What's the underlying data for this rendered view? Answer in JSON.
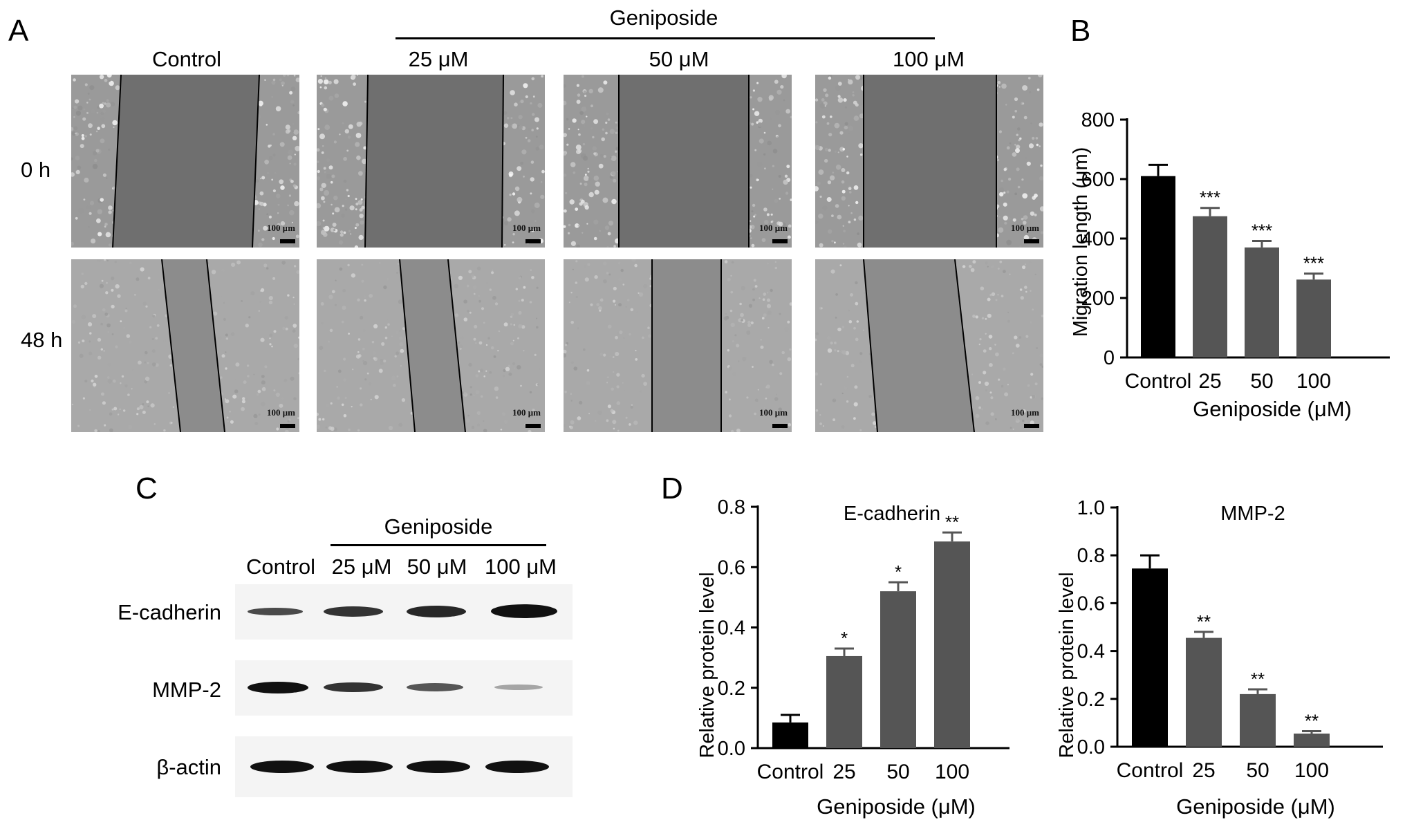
{
  "panels": {
    "a": "A",
    "b": "B",
    "c": "C",
    "d": "D"
  },
  "panelA": {
    "treatment_label": "Geniposide",
    "columns": [
      "Control",
      "25 μM",
      "50 μM",
      "100 μM"
    ],
    "rows": [
      "0 h",
      "48 h"
    ],
    "scale_label": "100 μm"
  },
  "panelC": {
    "treatment_label": "Geniposide",
    "lanes": [
      "Control",
      "25 μM",
      "50 μM",
      "100 μM"
    ],
    "proteins": [
      "E-cadherin",
      "MMP-2",
      "β-actin"
    ]
  },
  "colors": {
    "control": "#000000",
    "treatment": "#555555"
  },
  "chart_data": [
    {
      "type": "bar",
      "title": "",
      "categories": [
        "Control",
        "25",
        "50",
        "100"
      ],
      "values": [
        610,
        475,
        370,
        262
      ],
      "errors": [
        38,
        28,
        22,
        20
      ],
      "significance": [
        "",
        "***",
        "***",
        "***"
      ],
      "xlabel": "Geniposide (μM)",
      "ylabel": "Migration length (μm)",
      "ylim": [
        0,
        800
      ],
      "yticks": [
        "0",
        "200",
        "400",
        "600",
        "800"
      ]
    },
    {
      "type": "bar",
      "title": "E-cadherin",
      "categories": [
        "Control",
        "25",
        "50",
        "100"
      ],
      "values": [
        0.085,
        0.305,
        0.52,
        0.685
      ],
      "errors": [
        0.025,
        0.025,
        0.03,
        0.03
      ],
      "significance": [
        "",
        "*",
        "*",
        "**"
      ],
      "xlabel": "Geniposide (μM)",
      "ylabel": "Relative protein level",
      "ylim": [
        0,
        0.8
      ],
      "yticks": [
        "0.0",
        "0.2",
        "0.4",
        "0.6",
        "0.8"
      ]
    },
    {
      "type": "bar",
      "title": "MMP-2",
      "categories": [
        "Control",
        "25",
        "50",
        "100"
      ],
      "values": [
        0.745,
        0.455,
        0.22,
        0.055
      ],
      "errors": [
        0.055,
        0.025,
        0.02,
        0.01
      ],
      "significance": [
        "",
        "**",
        "**",
        "**"
      ],
      "xlabel": "Geniposide (μM)",
      "ylabel": "Relative protein level",
      "ylim": [
        0,
        1.0
      ],
      "yticks": [
        "0.0",
        "0.2",
        "0.4",
        "0.6",
        "0.8",
        "1.0"
      ]
    }
  ]
}
